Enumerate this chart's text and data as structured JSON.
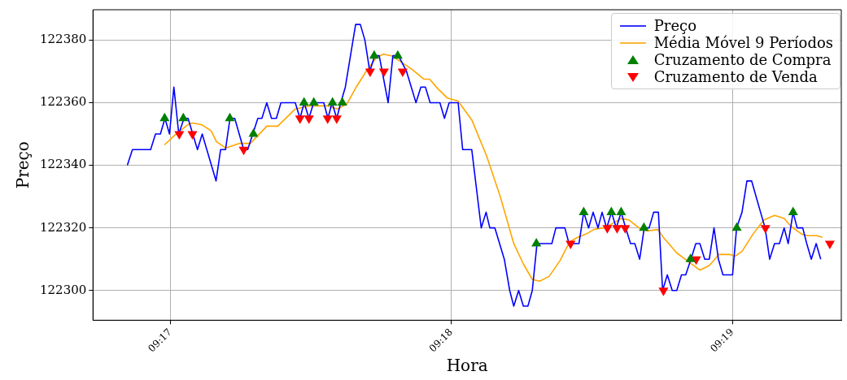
{
  "chart_data": {
    "type": "line",
    "xlabel": "Hora",
    "ylabel": "Preço",
    "xlim": [
      9.27874,
      9.32313
    ],
    "xticks": [
      {
        "value": 9.28333,
        "label": "09:17"
      },
      {
        "value": 9.3,
        "label": "09:18"
      },
      {
        "value": 9.31667,
        "label": "09:19"
      }
    ],
    "ylim": [
      122290.5,
      122389.7
    ],
    "yticks": [
      122300,
      122320,
      122340,
      122360,
      122380
    ],
    "grid": true,
    "legend": "top right",
    "series": [
      {
        "name": "Preço",
        "type": "line",
        "color": "#0000ff",
        "marker": "none",
        "x": [
          9.28078,
          9.28108,
          9.28216,
          9.28245,
          9.28274,
          9.28301,
          9.28328,
          9.28354,
          9.28383,
          9.28414,
          9.28438,
          9.28494,
          9.28522,
          9.28604,
          9.28631,
          9.2866,
          9.28687,
          9.28715,
          9.28768,
          9.28792,
          9.28852,
          9.28876,
          9.28905,
          9.28933,
          9.28962,
          9.28989,
          9.29074,
          9.29102,
          9.29127,
          9.29155,
          9.29183,
          9.29243,
          9.29268,
          9.29292,
          9.2932,
          9.29344,
          9.29371,
          9.29432,
          9.2946,
          9.29487,
          9.29516,
          9.29545,
          9.29572,
          9.29625,
          9.29653,
          9.29686,
          9.29734,
          9.2979,
          9.29819,
          9.29846,
          9.29874,
          9.29932,
          9.29959,
          9.29987,
          9.3004,
          9.30067,
          9.30121,
          9.30177,
          9.30206,
          9.30228,
          9.30258,
          9.30314,
          9.30346,
          9.3037,
          9.30399,
          9.30427,
          9.30454,
          9.3048,
          9.30508,
          9.30596,
          9.3062,
          9.30673,
          9.30698,
          9.30757,
          9.30785,
          9.30814,
          9.30841,
          9.3087,
          9.30894,
          9.30921,
          9.3095,
          9.30978,
          9.31007,
          9.31034,
          9.31063,
          9.31088,
          9.31117,
          9.31144,
          9.31173,
          9.312,
          9.31228,
          9.31253,
          9.31281,
          9.3131,
          9.31337,
          9.31365,
          9.3139,
          9.31421,
          9.3145,
          9.31474,
          9.31503,
          9.3153,
          9.31558,
          9.31584,
          9.31611,
          9.31668,
          9.31692,
          9.31724,
          9.31753,
          9.31781,
          9.31834,
          9.31861,
          9.31888,
          9.31917,
          9.31946,
          9.31974,
          9.31998,
          9.32027,
          9.32051,
          9.32084,
          9.32108,
          9.32135,
          9.32164,
          9.32191
        ],
        "values": [
          122340,
          122345,
          122345,
          122350,
          122350,
          122355,
          122350,
          122365,
          122350,
          122355,
          122355,
          122345,
          122350,
          122335,
          122345,
          122345,
          122355,
          122355,
          122345,
          122345,
          122355,
          122355,
          122360,
          122355,
          122355,
          122360,
          122360,
          122355,
          122360,
          122355,
          122360,
          122360,
          122355,
          122360,
          122355,
          122360,
          122365,
          122385,
          122385,
          122380,
          122370,
          122375,
          122375,
          122360,
          122375,
          122375,
          122370,
          122360,
          122365,
          122365,
          122360,
          122360,
          122355,
          122360,
          122360,
          122345,
          122345,
          122320,
          122325,
          122320,
          122320,
          122310,
          122300,
          122295,
          122300,
          122295,
          122295,
          122300,
          122315,
          122315,
          122320,
          122320,
          122315,
          122315,
          122325,
          122320,
          122325,
          122320,
          122325,
          122320,
          122325,
          122320,
          122325,
          122320,
          122315,
          122315,
          122310,
          122320,
          122320,
          122325,
          122325,
          122300,
          122305,
          122300,
          122300,
          122305,
          122305,
          122310,
          122315,
          122315,
          122310,
          122310,
          122320,
          122310,
          122305,
          122305,
          122320,
          122325,
          122335,
          122335,
          122325,
          122320,
          122310,
          122315,
          122315,
          122320,
          122315,
          122325,
          122320,
          122320,
          122315,
          122310,
          122315,
          122310
        ]
      },
      {
        "name": "Média Móvel 9 Períodos",
        "type": "line",
        "color": "#ffa500",
        "marker": "none",
        "x": [
          9.28298,
          9.28357,
          9.28438,
          9.28462,
          9.28518,
          9.28575,
          9.28607,
          9.28663,
          9.28744,
          9.28808,
          9.28905,
          9.2897,
          9.29074,
          9.29163,
          9.2926,
          9.29324,
          9.29379,
          9.29436,
          9.295,
          9.29557,
          9.29597,
          9.29645,
          9.29702,
          9.29758,
          9.29838,
          9.29871,
          9.29919,
          9.29976,
          9.3004,
          9.30121,
          9.30209,
          9.3029,
          9.3037,
          9.30427,
          9.3048,
          9.30524,
          9.3058,
          9.30644,
          9.30701,
          9.30749,
          9.30798,
          9.30846,
          9.30902,
          9.30959,
          9.31007,
          9.31055,
          9.31112,
          9.3116,
          9.31225,
          9.31257,
          9.31337,
          9.31386,
          9.31474,
          9.3153,
          9.31587,
          9.31652,
          9.31684,
          9.31724,
          9.31789,
          9.31853,
          9.31917,
          9.31974,
          9.32014,
          9.32079,
          9.32111,
          9.32167,
          9.32201
        ],
        "values": [
          122346.5,
          122349.5,
          122353,
          122353.5,
          122353,
          122351,
          122347.5,
          122345.5,
          122347,
          122347,
          122352.5,
          122352.5,
          122358,
          122359,
          122359,
          122358,
          122359.5,
          122365,
          122370.5,
          122374.5,
          122375.5,
          122375,
          122373,
          122371,
          122367.5,
          122367.5,
          122364.5,
          122361.5,
          122360.5,
          122354.5,
          122343,
          122330,
          122315,
          122308.5,
          122303.5,
          122303,
          122304.5,
          122309.5,
          122315.5,
          122317,
          122318,
          122319.5,
          122320,
          122321.5,
          122323,
          122322.5,
          122320,
          122319,
          122319.5,
          122317,
          122312,
          122310,
          122306.5,
          122308,
          122311.5,
          122311.5,
          122311,
          122312.5,
          122318,
          122322.5,
          122324,
          122323,
          122320.5,
          122318,
          122317.5,
          122317.5,
          122317
        ]
      },
      {
        "name": "Cruzamento de Compra",
        "type": "scatter",
        "color": "#008000",
        "marker": "triangle",
        "x": [
          9.28299,
          9.2841,
          9.28686,
          9.28826,
          9.29126,
          9.29184,
          9.29295,
          9.29353,
          9.29542,
          9.29682,
          9.30504,
          9.30785,
          9.30949,
          9.31007,
          9.31142,
          9.31418,
          9.31693,
          9.32027
        ],
        "values": [
          122355,
          122355,
          122355,
          122350,
          122360,
          122360,
          122360,
          122360,
          122375,
          122375,
          122315,
          122325,
          122325,
          122325,
          122320,
          122310,
          122320,
          122325
        ]
      },
      {
        "name": "Cruzamento de Venda",
        "type": "scatter",
        "color": "#ff0000",
        "marker": "triangle_down",
        "x": [
          9.28386,
          9.28464,
          9.28768,
          9.29102,
          9.29155,
          9.29266,
          9.2932,
          9.29518,
          9.296,
          9.29711,
          9.30707,
          9.30925,
          9.30983,
          9.31031,
          9.31258,
          9.31452,
          9.31863,
          9.32245
        ],
        "values": [
          122350,
          122350,
          122345,
          122355,
          122355,
          122355,
          122355,
          122370,
          122370,
          122370,
          122315,
          122320,
          122320,
          122320,
          122300,
          122310,
          122320,
          122315
        ]
      }
    ]
  }
}
